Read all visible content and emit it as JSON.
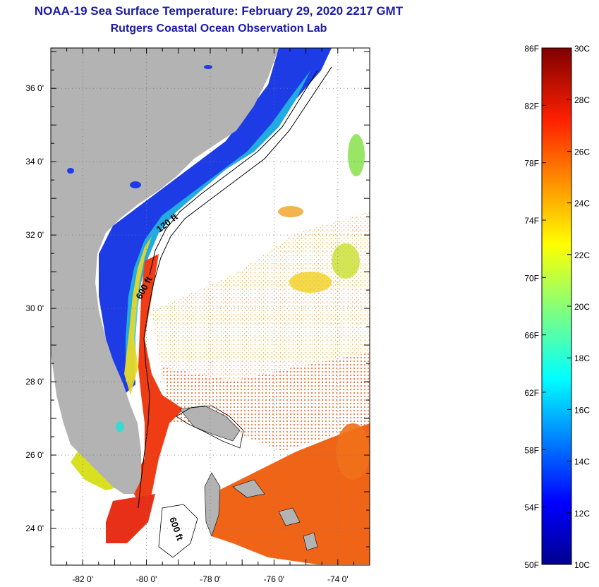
{
  "header": {
    "title": "NOAA-19 Sea Surface Temperature:  February 29, 2020 2217 GMT",
    "subtitle": "Rutgers Coastal Ocean Observation Lab"
  },
  "map": {
    "lat_ticks": [
      "36 0'",
      "34 0'",
      "32 0'",
      "30 0'",
      "28 0'",
      "26 0'",
      "24 0'"
    ],
    "lon_ticks": [
      "-82 0'",
      "-80 0'",
      "-78 0'",
      "-76 0'",
      "-74 0'"
    ],
    "lat_values": [
      36,
      34,
      32,
      30,
      28,
      26,
      24
    ],
    "lon_values": [
      -82,
      -80,
      -78,
      -76,
      -74
    ],
    "lat_range": [
      23,
      37.1
    ],
    "lon_range": [
      -83,
      -73
    ],
    "depth_labels": [
      "120 ft",
      "600 ft",
      "600 ft"
    ],
    "colors": {
      "land": "#b3b3b3",
      "cloud": "#ffffff",
      "cold_shelf": "#1e3ce6",
      "gulf_stream": "#f03c14"
    }
  },
  "colorbar": {
    "fahrenheit": [
      "86F",
      "82F",
      "78F",
      "74F",
      "70F",
      "66F",
      "62F",
      "58F",
      "54F",
      "50F"
    ],
    "celsius": [
      "30C",
      "28C",
      "26C",
      "24C",
      "22C",
      "20C",
      "18C",
      "16C",
      "14C",
      "12C",
      "10C"
    ],
    "range_c": [
      10,
      30
    ]
  }
}
